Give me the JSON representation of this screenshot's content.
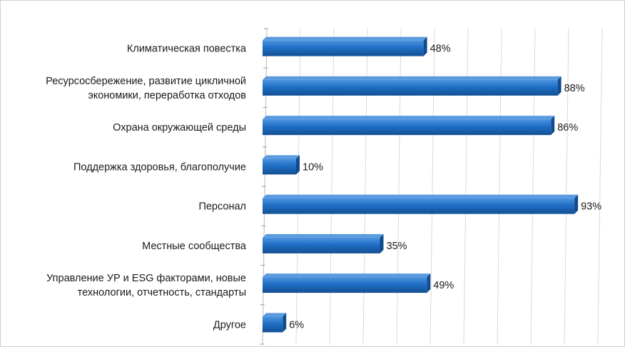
{
  "chart_data": {
    "type": "bar",
    "orientation": "horizontal",
    "categories": [
      [
        "Климатическая повестка"
      ],
      [
        "Ресурсосбережение, развитие цикличной",
        "экономики, переработка отходов"
      ],
      [
        "Охрана окружающей среды"
      ],
      [
        "Поддержка здоровья, благополучие"
      ],
      [
        "Персонал"
      ],
      [
        "Местные сообщества"
      ],
      [
        "Управление УР и ESG факторами, новые",
        "технологии, отчетность, стандарты"
      ],
      [
        "Другое"
      ]
    ],
    "values": [
      48,
      88,
      86,
      10,
      93,
      35,
      49,
      6
    ],
    "value_labels": [
      "48%",
      "88%",
      "86%",
      "10%",
      "93%",
      "35%",
      "49%",
      "6%"
    ],
    "xlim": [
      0,
      100
    ],
    "grid": true,
    "colors": {
      "bar": "#1f6fc6",
      "bar_dark": "#0f4b8f",
      "bar_light": "#5a9be0",
      "grid": "#d9d9d9"
    }
  }
}
